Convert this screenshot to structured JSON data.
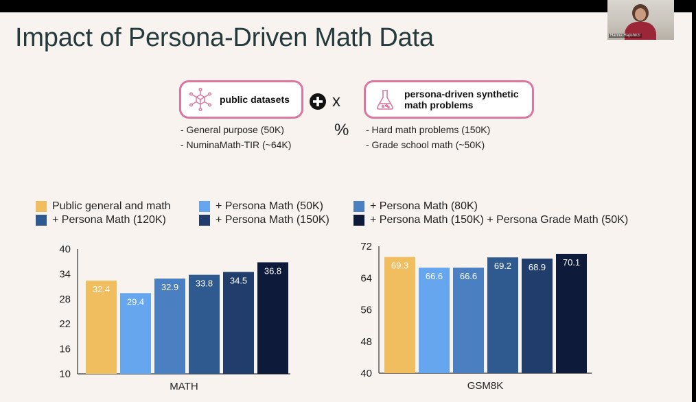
{
  "slide": {
    "title": "Impact of Persona-Driven Math Data",
    "pill_public": {
      "label": "public datasets",
      "icon": "network-cube-icon"
    },
    "pill_persona": {
      "label_line1": "persona-driven synthetic",
      "label_line2": "math problems",
      "icon": "flask-icon"
    },
    "plus_icon": "plus-circle-icon",
    "times": "x",
    "percent": "%",
    "public_items": [
      "- General purpose (50K)",
      "- NuminaMath-TIR (~64K)"
    ],
    "persona_items": [
      "- Hard math problems (150K)",
      "- Grade school math (~50K)"
    ]
  },
  "video": {
    "name": "Hanna Hajishirzi"
  },
  "colors": {
    "accent_pink": "#d9779f",
    "public": "#f0bd5f",
    "p50": "#66a6ee",
    "p80": "#4a7fc2",
    "p120": "#2f5a8f",
    "p150": "#203d6b",
    "p150g": "#0d1a3a"
  },
  "legend": [
    {
      "label": "Public general and math",
      "color": "#f0bd5f"
    },
    {
      "label": "+ Persona Math (50K)",
      "color": "#66a6ee"
    },
    {
      "label": "+ Persona Math (80K)",
      "color": "#4a7fc2"
    },
    {
      "label": "+ Persona Math (120K)",
      "color": "#2f5a8f"
    },
    {
      "label": "+ Persona Math (150K)",
      "color": "#203d6b"
    },
    {
      "label": "+ Persona Math (150K) + Persona Grade Math (50K)",
      "color": "#0d1a3a"
    }
  ],
  "chart_data": [
    {
      "type": "bar",
      "title": "",
      "xlabel": "MATH",
      "ylabel": "",
      "ylim": [
        10,
        40
      ],
      "yticks": [
        10,
        16,
        22,
        28,
        34,
        40
      ],
      "categories": [
        "Public general and math",
        "+ Persona Math (50K)",
        "+ Persona Math (80K)",
        "+ Persona Math (120K)",
        "+ Persona Math (150K)",
        "+ Persona Math (150K) + Persona Grade Math (50K)"
      ],
      "values": [
        32.4,
        29.4,
        32.9,
        33.8,
        34.5,
        36.8
      ],
      "labels": [
        "32.4",
        "29.4",
        "32.9",
        "33.8",
        "34.5",
        "36.8"
      ]
    },
    {
      "type": "bar",
      "title": "",
      "xlabel": "GSM8K",
      "ylabel": "",
      "ylim": [
        40,
        72
      ],
      "yticks": [
        40,
        48,
        56,
        64,
        72
      ],
      "categories": [
        "Public general and math",
        "+ Persona Math (50K)",
        "+ Persona Math (80K)",
        "+ Persona Math (120K)",
        "+ Persona Math (150K)",
        "+ Persona Math (150K) + Persona Grade Math (50K)"
      ],
      "values": [
        69.3,
        66.6,
        66.6,
        69.2,
        68.9,
        70.1
      ],
      "labels": [
        "69.3",
        "66.6",
        "66.6",
        "69.2",
        "68.9",
        "70.1"
      ]
    }
  ]
}
